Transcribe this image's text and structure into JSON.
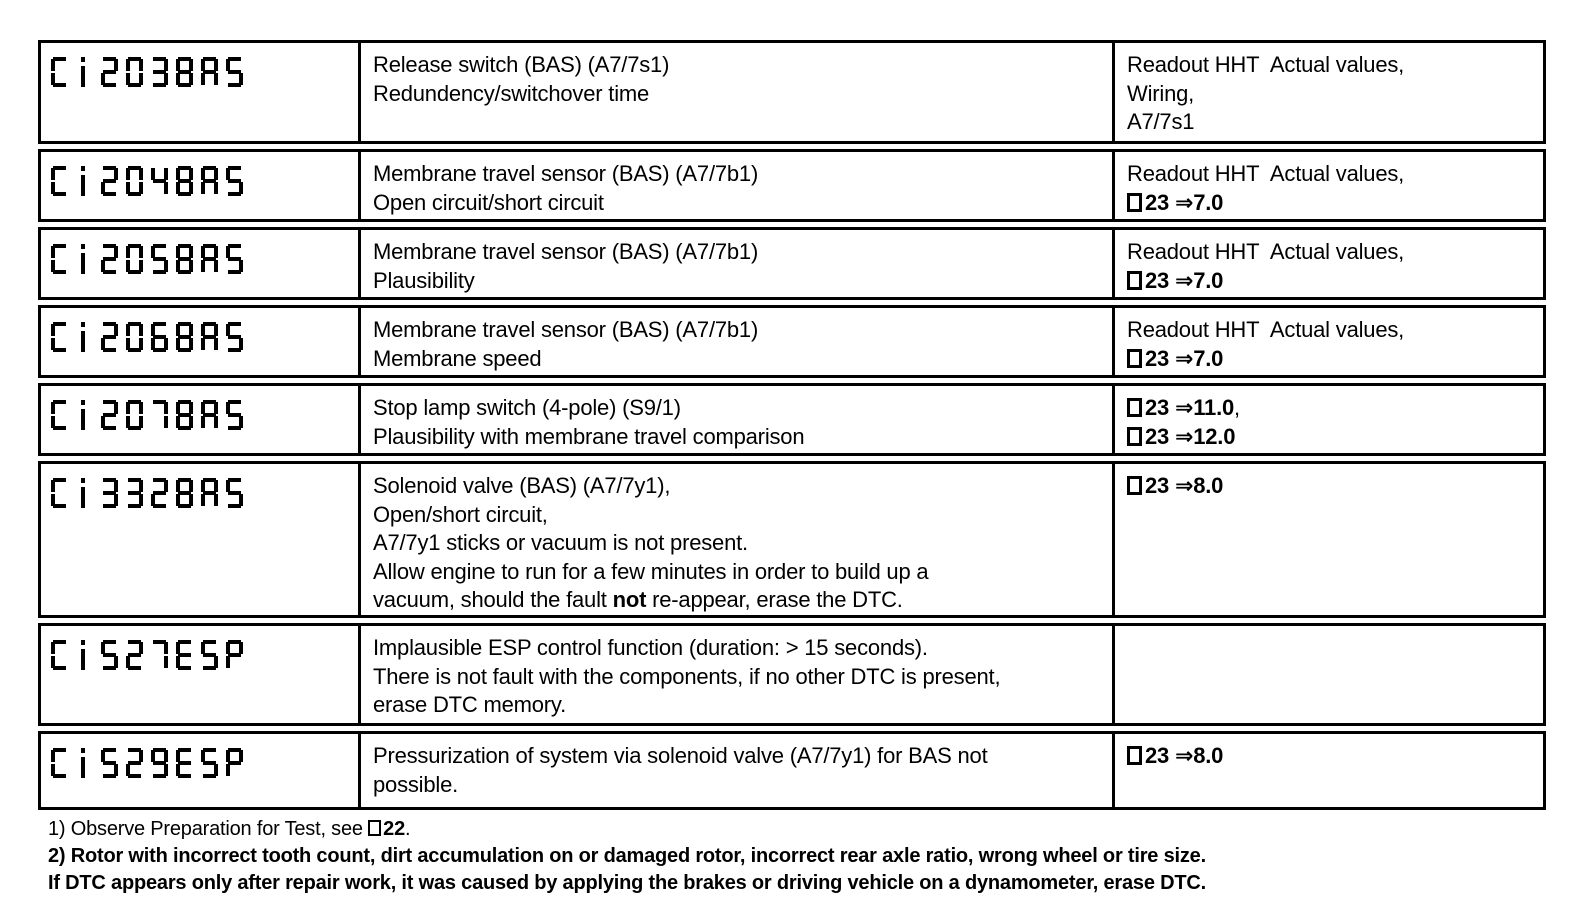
{
  "table": {
    "rows": [
      {
        "code": "C1203BAS",
        "description": [
          "Release switch (BAS) (A7/7s1)",
          "Redundency/switchover time"
        ],
        "test_steps": [
          "Readout HHT  Actual values,",
          "Wiring,",
          "A7/7s1"
        ]
      },
      {
        "code": "C1204BAS",
        "description": [
          "Membrane travel sensor (BAS) (A7/7b1)",
          "Open circuit/short circuit"
        ],
        "test_steps": [
          "Readout HHT  Actual values,",
          "**□23 ⇒7.0**"
        ]
      },
      {
        "code": "C1205BAS",
        "description": [
          "Membrane travel sensor (BAS) (A7/7b1)",
          "Plausibility"
        ],
        "test_steps": [
          "Readout HHT  Actual values,",
          "**□23 ⇒7.0**"
        ]
      },
      {
        "code": "C1206BAS",
        "description": [
          "Membrane travel sensor (BAS) (A7/7b1)",
          "Membrane speed"
        ],
        "test_steps": [
          "Readout HHT  Actual values,",
          "**□23 ⇒7.0**"
        ]
      },
      {
        "code": "C1207BAS",
        "description": [
          "Stop lamp switch (4-pole) (S9/1)",
          "Plausibility with membrane travel comparison"
        ],
        "test_steps": [
          "**□23 ⇒11.0**,",
          "**□23 ⇒12.0**"
        ]
      },
      {
        "code": "C1332BAS",
        "description": [
          "Solenoid valve (BAS) (A7/7y1),",
          "Open/short circuit,",
          "A7/7y1 sticks or vacuum is not present.",
          "Allow engine to run for a few minutes in order to build up a",
          "vacuum, should the fault **not** re-appear, erase the DTC."
        ],
        "test_steps": [
          "**□23 ⇒8.0**"
        ]
      },
      {
        "code": "C1527ESP",
        "description": [
          "Implausible ESP control function (duration: > 15 seconds).",
          "There is not fault with the components, if no other DTC is present,",
          "erase DTC memory."
        ],
        "test_steps": []
      },
      {
        "code": "C1529ESP",
        "description": [
          "Pressurization of system via solenoid valve (A7/7y1) for BAS not",
          "possible."
        ],
        "test_steps": [
          "**□23 ⇒8.0**"
        ]
      }
    ]
  },
  "footnotes": [
    "1) Observe Preparation for Test, see **□22**.",
    "**2) Rotor with incorrect tooth count, dirt accumulation on or damaged rotor, incorrect rear axle ratio, wrong wheel or tire size.**",
    "**If DTC appears only after repair work, it was caused by applying the brakes or driving vehicle on a dynamometer, erase DTC.**"
  ]
}
